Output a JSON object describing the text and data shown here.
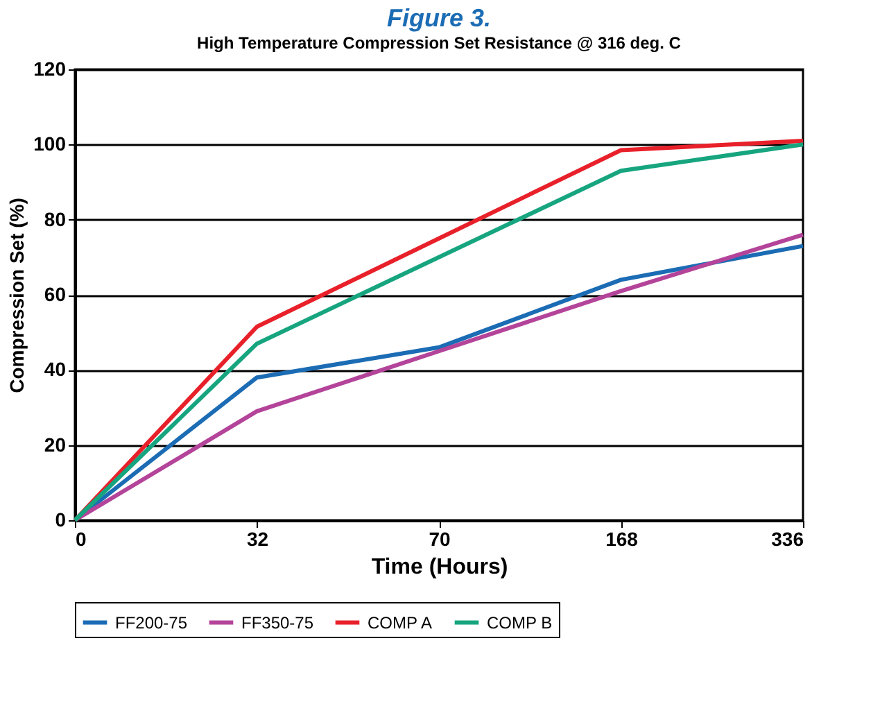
{
  "chart_data": {
    "type": "line",
    "title": "Figure 3.",
    "subtitle": "High Temperature Compression Set Resistance @ 316 deg. C",
    "xlabel": "Time (Hours)",
    "ylabel": "Compression Set (%)",
    "categories": [
      "0",
      "32",
      "70",
      "168",
      "336"
    ],
    "series": [
      {
        "name": "FF200-75",
        "color": "#1b6cb4",
        "values": [
          0,
          38,
          46,
          64,
          73
        ]
      },
      {
        "name": "FF350-75",
        "color": "#b4449a",
        "values": [
          0,
          29,
          45,
          61,
          76
        ]
      },
      {
        "name": "COMP A",
        "color": "#e8202a",
        "values": [
          0,
          51.5,
          75,
          98.5,
          101
        ]
      },
      {
        "name": "COMP B",
        "color": "#16a57f",
        "values": [
          0,
          47,
          70,
          93,
          100
        ]
      }
    ],
    "ylim": [
      0,
      120
    ],
    "yticks": [
      0,
      20,
      40,
      60,
      80,
      100,
      120
    ],
    "grid": "y",
    "legend": "bottom",
    "marker": "none",
    "line_style": "solid"
  }
}
